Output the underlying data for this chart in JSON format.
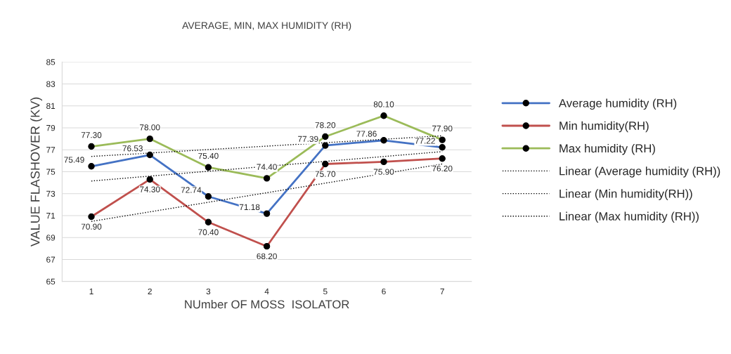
{
  "chart_data": {
    "type": "line",
    "title": "AVERAGE, MIN, MAX HUMIDITY (RH)",
    "xlabel": "NUmber OF MOSS  ISOLATOR",
    "ylabel": "VALUE FLASHOVER (KV)",
    "categories": [
      "1",
      "2",
      "3",
      "4",
      "5",
      "6",
      "7"
    ],
    "series": [
      {
        "name": "Average humidity (RH)",
        "color": "#4472c4",
        "values": [
          75.49,
          76.53,
          72.74,
          71.18,
          77.39,
          77.86,
          77.22
        ],
        "value_labels": [
          "75.49",
          "76.53",
          "72.74",
          "71.18",
          "77.39",
          "77.86",
          "77.22"
        ],
        "marker": "circle"
      },
      {
        "name": "Min humidity(RH)",
        "color": "#c0504d",
        "values": [
          70.9,
          74.3,
          70.4,
          68.2,
          75.7,
          75.9,
          76.2
        ],
        "value_labels": [
          "70.90",
          "74.30",
          "70.40",
          "68.20",
          "75.70",
          "75.90",
          "76.20"
        ],
        "marker": "circle"
      },
      {
        "name": "Max humidity (RH)",
        "color": "#9bbb59",
        "values": [
          77.3,
          78.0,
          75.4,
          74.4,
          78.2,
          80.1,
          77.9
        ],
        "value_labels": [
          "77.30",
          "78.00",
          "75.40",
          "74.40",
          "78.20",
          "80.10",
          "77.90"
        ],
        "marker": "circle"
      },
      {
        "name": "Linear (Average humidity (RH))",
        "color": "#000000",
        "type": "line",
        "line_style": "dotted",
        "marker": "none",
        "x": [
          "1",
          "7"
        ],
        "values": [
          74.15,
          76.83
        ]
      },
      {
        "name": "Linear (Min humidity(RH))",
        "color": "#000000",
        "type": "line",
        "line_style": "dotted",
        "marker": "none",
        "x": [
          "1",
          "7"
        ],
        "values": [
          70.47,
          75.7
        ]
      },
      {
        "name": "Linear (Max humidity (RH))",
        "color": "#000000",
        "type": "line",
        "line_style": "dotted",
        "marker": "none",
        "x": [
          "1",
          "7"
        ],
        "values": [
          76.39,
          78.27
        ]
      }
    ],
    "ylim": [
      65,
      85
    ],
    "yticks": [
      65,
      67,
      69,
      71,
      73,
      75,
      77,
      79,
      81,
      83,
      85
    ],
    "grid": "y",
    "legend": "right"
  }
}
